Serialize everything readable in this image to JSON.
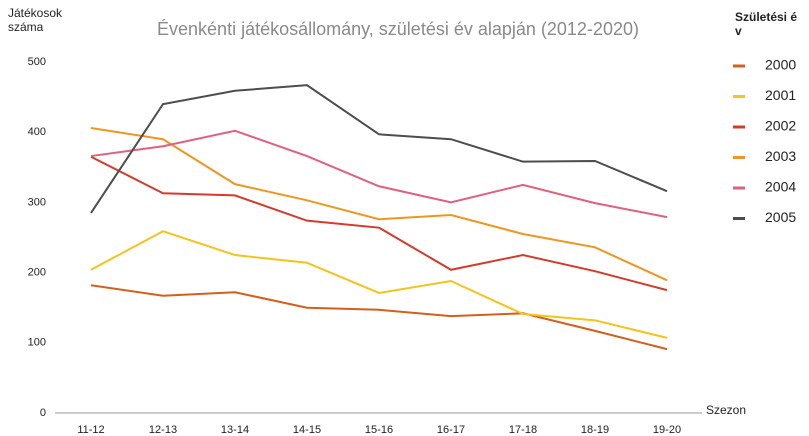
{
  "chart_data": {
    "type": "line",
    "title": "Évenkénti játékosállomány, születési év alapján (2012-2020)",
    "y_label": "Játékosok száma",
    "x_label": "Szezon",
    "legend_title": "Születési év",
    "categories": [
      "11-12",
      "12-13",
      "13-14",
      "14-15",
      "15-16",
      "16-17",
      "17-18",
      "18-19",
      "19-20"
    ],
    "ylim": [
      0,
      500
    ],
    "yticks": [
      0,
      100,
      200,
      300,
      400,
      500
    ],
    "grid": false,
    "legend": "right",
    "series": [
      {
        "name": "2000",
        "color": "#d2601a",
        "values": [
          182,
          167,
          172,
          150,
          147,
          138,
          142,
          117,
          91
        ]
      },
      {
        "name": "2001",
        "color": "#f6c21c",
        "values": [
          204,
          259,
          225,
          214,
          171,
          188,
          141,
          132,
          107
        ]
      },
      {
        "name": "2002",
        "color": "#d63a2a",
        "values": [
          365,
          313,
          310,
          274,
          264,
          204,
          225,
          202,
          175
        ]
      },
      {
        "name": "2003",
        "color": "#f0961e",
        "values": [
          406,
          390,
          326,
          303,
          276,
          282,
          255,
          236,
          189
        ]
      },
      {
        "name": "2004",
        "color": "#e0607e",
        "values": [
          366,
          380,
          402,
          366,
          323,
          300,
          325,
          299,
          279
        ]
      },
      {
        "name": "2005",
        "color": "#4d4d4d",
        "values": [
          285,
          440,
          459,
          467,
          397,
          390,
          358,
          359,
          316
        ]
      }
    ]
  }
}
